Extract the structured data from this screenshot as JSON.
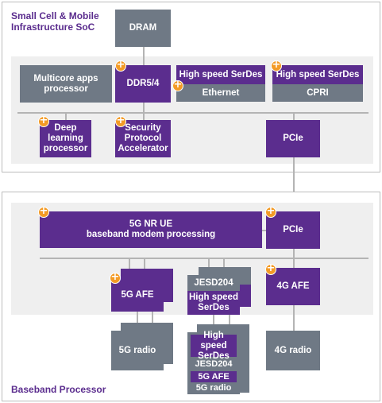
{
  "soc": {
    "title": "Small Cell & Mobile\nInfrastructure SoC",
    "dram": "DRAM",
    "multicore": "Multicore apps\nprocessor",
    "ddr": "DDR5/4",
    "serdes_eth_top": "High speed SerDes",
    "serdes_eth_bottom": "Ethernet",
    "serdes_cpri_top": "High speed SerDes",
    "serdes_cpri_bottom": "CPRI",
    "deep_learning": "Deep\nlearning\nprocessor",
    "security": "Security\nProtocol\nAccelerator",
    "pcie": "PCIe"
  },
  "baseband": {
    "title": "Baseband Processor",
    "modem": "5G NR UE\nbaseband modem processing",
    "pcie": "PCIe",
    "afe_5g": "5G AFE",
    "jesd_top": "JESD204",
    "serdes_mid": "High speed\nSerDes",
    "afe_4g": "4G AFE",
    "radio_5g": "5G radio",
    "radio_stack_serdes": "High speed\nSerDes",
    "radio_stack_jesd": "JESD204",
    "radio_stack_afe": "5G AFE",
    "radio_stack_radio": "5G radio",
    "radio_4g": "4G radio"
  },
  "icons": {
    "plus": "orange-plus-icon"
  },
  "colors": {
    "purple": "#5b2d8e",
    "gray": "#6f7985",
    "orange": "#f39b26",
    "panel": "#efefef"
  }
}
